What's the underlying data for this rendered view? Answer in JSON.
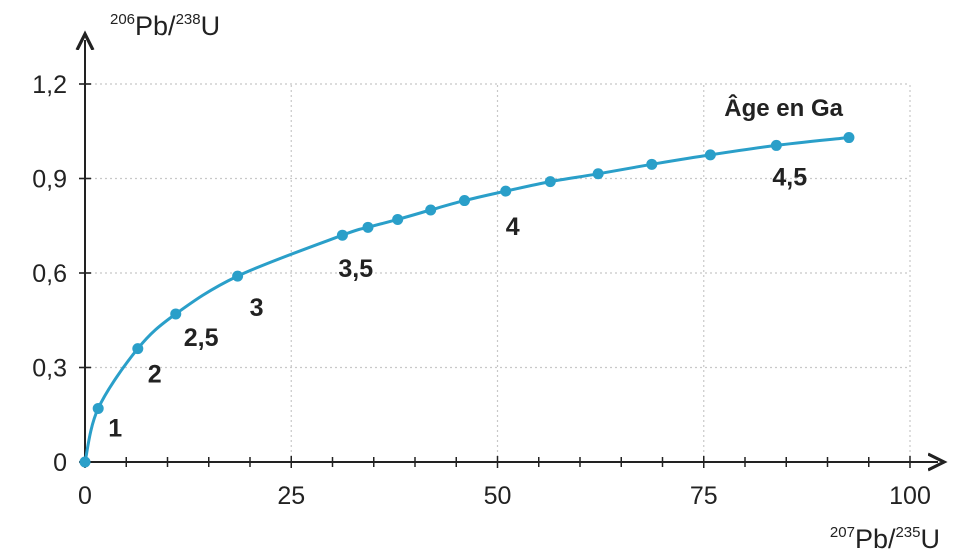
{
  "chart_data": {
    "type": "line",
    "title": "",
    "annotation_title": "Âge en Ga",
    "xlabel": {
      "sup": "207",
      "element": "Pb/",
      "sup2": "235",
      "element2": "U"
    },
    "ylabel": {
      "sup": "206",
      "element": "Pb/",
      "sup2": "238",
      "element2": "U"
    },
    "xlim": [
      0,
      100
    ],
    "ylim": [
      0,
      1.2
    ],
    "x_ticks": [
      "0",
      "25",
      "50",
      "75",
      "100"
    ],
    "y_ticks": [
      "0",
      "0,3",
      "0,6",
      "0,9",
      "1,2"
    ],
    "grid": true,
    "series": [
      {
        "color": "#2a9fc9",
        "points": [
          {
            "x": 0,
            "y": 0
          },
          {
            "x": 1.6,
            "y": 0.17
          },
          {
            "x": 6.4,
            "y": 0.36
          },
          {
            "x": 11,
            "y": 0.47
          },
          {
            "x": 18.5,
            "y": 0.59
          },
          {
            "x": 31.2,
            "y": 0.72
          },
          {
            "x": 34.3,
            "y": 0.745
          },
          {
            "x": 37.9,
            "y": 0.77
          },
          {
            "x": 41.9,
            "y": 0.8
          },
          {
            "x": 46,
            "y": 0.83
          },
          {
            "x": 51,
            "y": 0.86
          },
          {
            "x": 56.4,
            "y": 0.89
          },
          {
            "x": 62.2,
            "y": 0.915
          },
          {
            "x": 68.7,
            "y": 0.945
          },
          {
            "x": 75.8,
            "y": 0.975
          },
          {
            "x": 83.8,
            "y": 1.005
          },
          {
            "x": 92.6,
            "y": 1.03
          }
        ]
      }
    ],
    "age_labels": [
      {
        "text": "1",
        "x": 1.6,
        "y": 0.17
      },
      {
        "text": "2",
        "x": 6.4,
        "y": 0.36
      },
      {
        "text": "2,5",
        "x": 11,
        "y": 0.47
      },
      {
        "text": "3",
        "x": 18.5,
        "y": 0.59
      },
      {
        "text": "3,5",
        "x": 31.2,
        "y": 0.72
      },
      {
        "text": "4",
        "x": 51,
        "y": 0.86
      },
      {
        "text": "4,5",
        "x": 83.8,
        "y": 1.005
      }
    ]
  }
}
